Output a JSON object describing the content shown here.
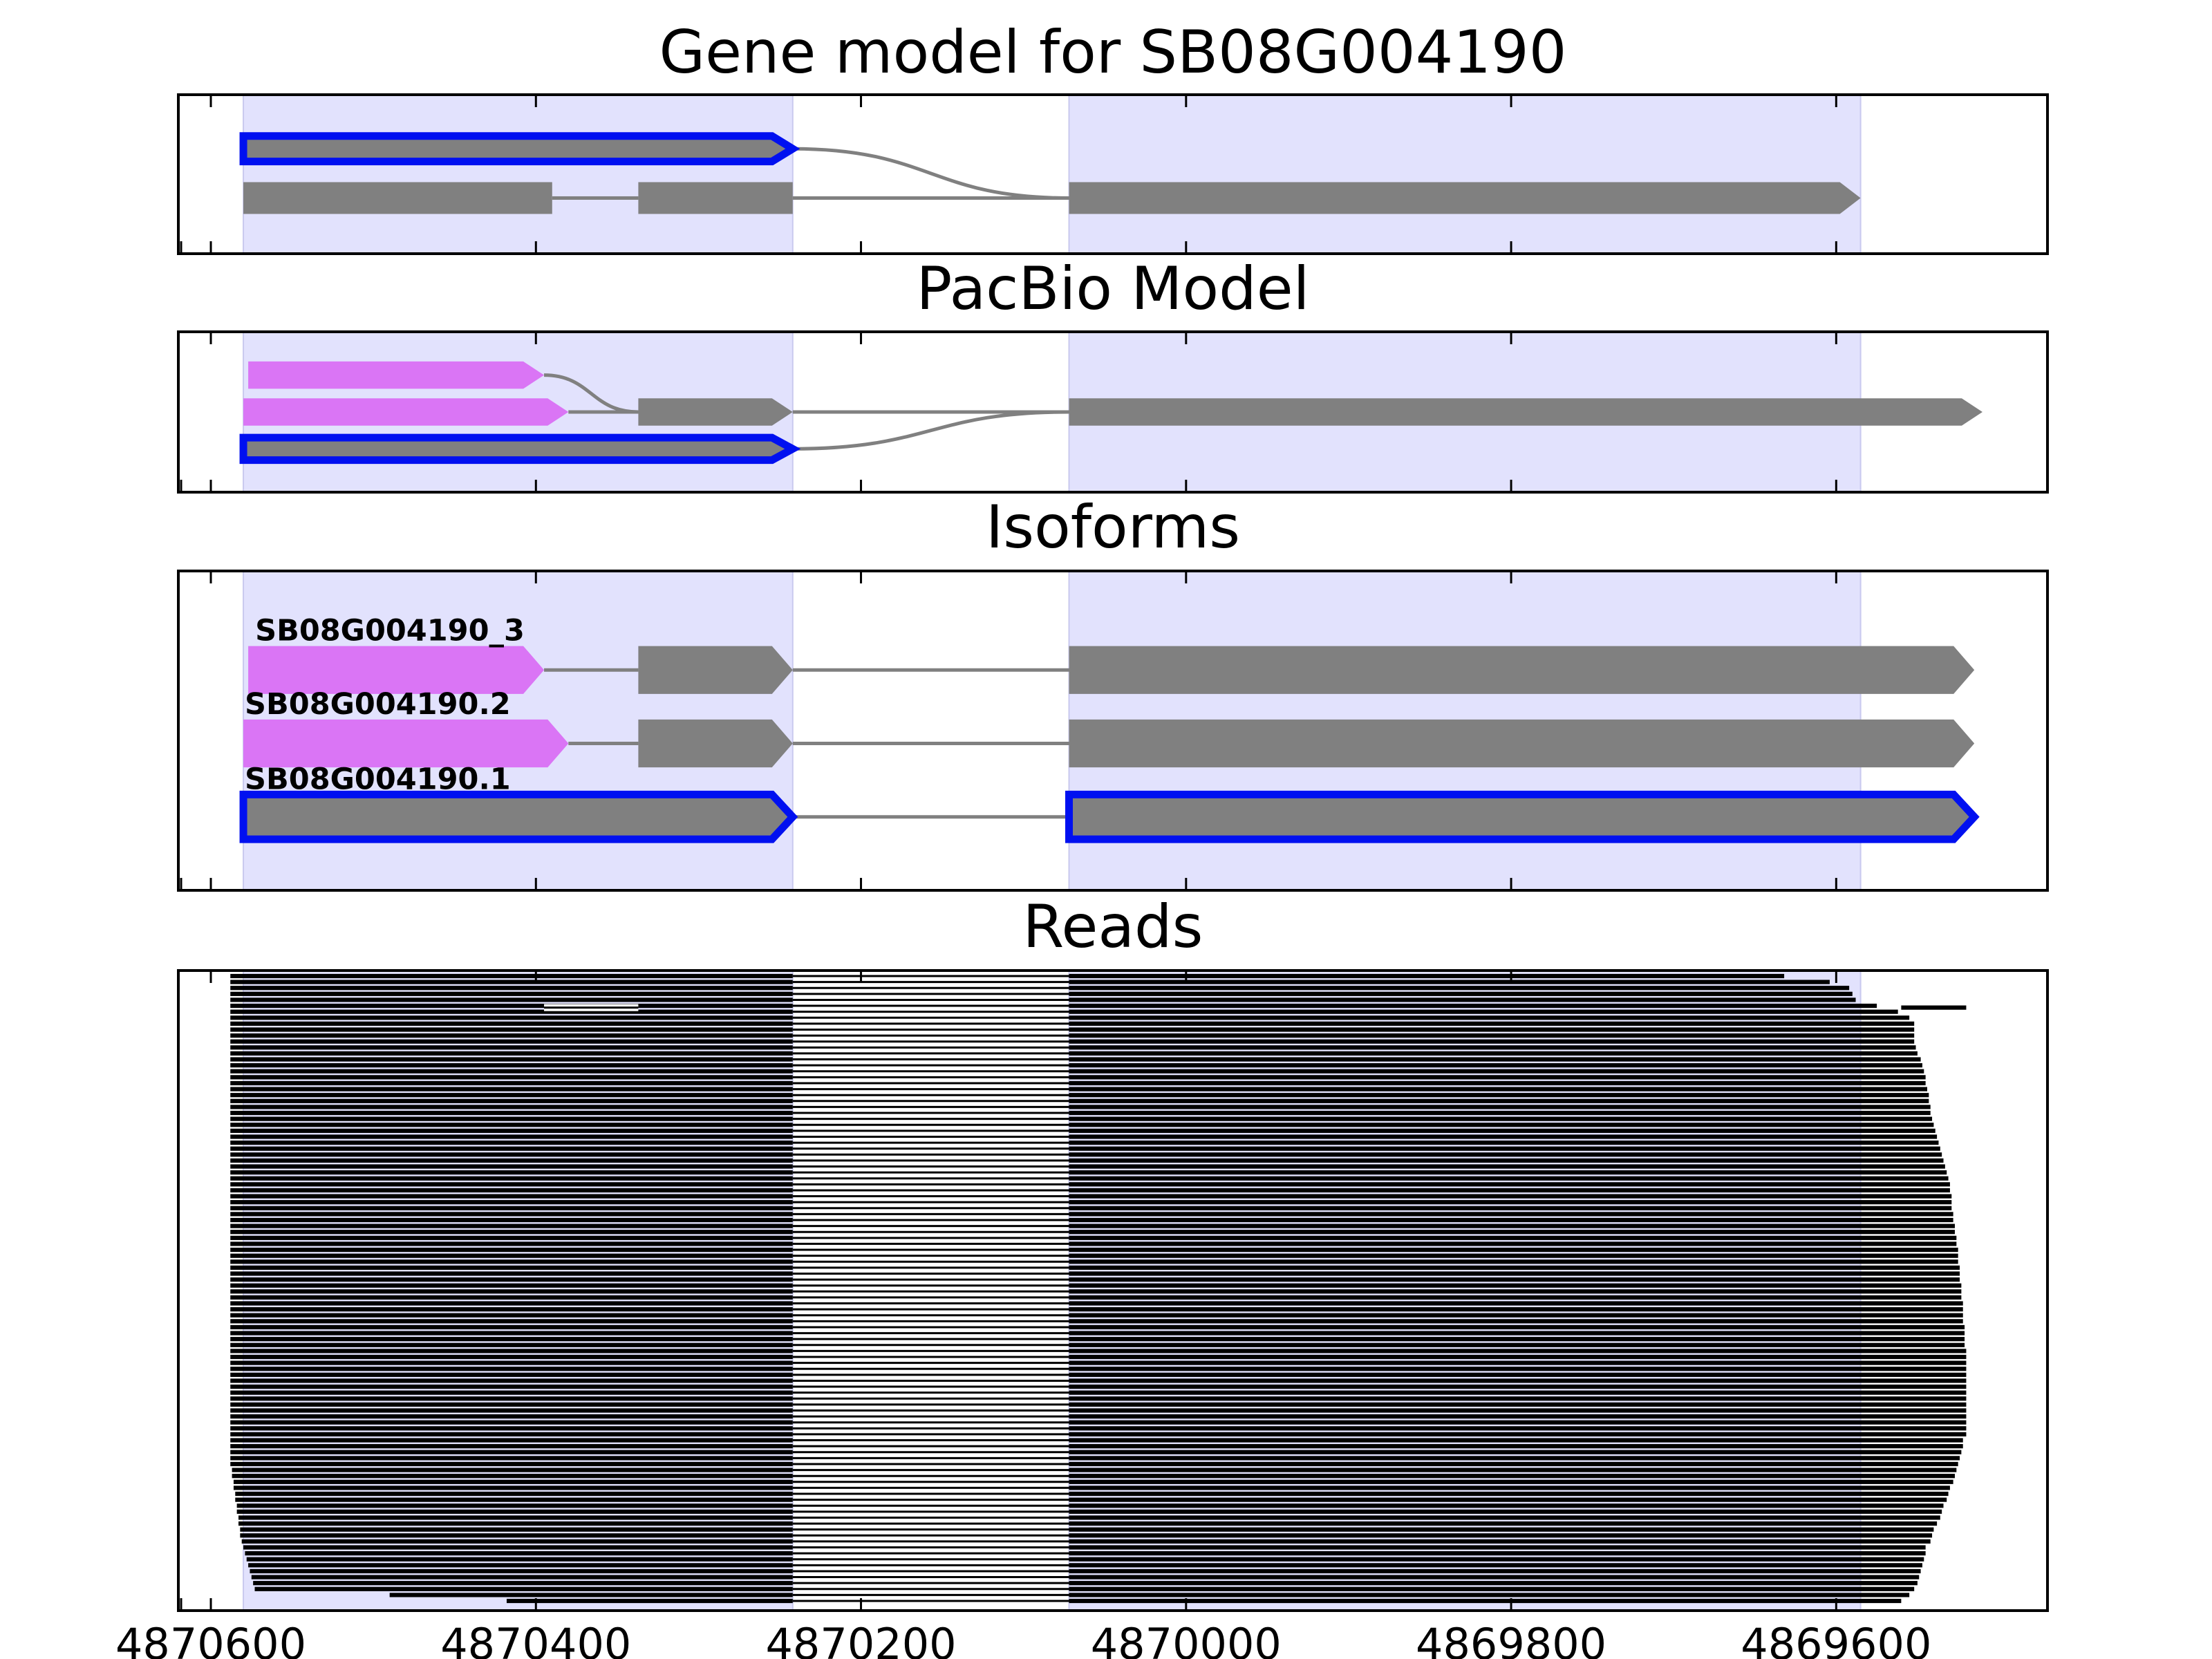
{
  "chart_data": {
    "type": "gene-track",
    "x_axis": {
      "xlim": [
        4870620,
        4869470
      ],
      "ticks": [
        4870600,
        4870400,
        4870200,
        4870000,
        4869800,
        4869600
      ],
      "tick_labels": [
        "4870600",
        "4870400",
        "4870200",
        "4870000",
        "4869800",
        "4869600"
      ]
    },
    "colors": {
      "exon": "#808080",
      "highlight_exon": "#da75f5",
      "selected_outline": "#0010f0",
      "intron": "#808080",
      "shaded_region": "#e2e2fd",
      "read": "#000000"
    },
    "shaded_regions": [
      [
        4870580,
        4870242
      ],
      [
        4870072,
        4869585
      ]
    ],
    "panels": [
      {
        "title": "Gene model for SB08G004190",
        "ymax": 1.0,
        "transcripts": [
          {
            "y": 0.66,
            "h": 0.16,
            "selected": true,
            "intron_style": "curve",
            "exons": [
              {
                "s": 4870580,
                "e": 4870242,
                "arrow": true
              }
            ]
          },
          {
            "y": 0.35,
            "h": 0.2,
            "selected": false,
            "intron_style": "line",
            "exons": [
              {
                "s": 4870580,
                "e": 4870390
              },
              {
                "s": 4870337,
                "e": 4870242
              },
              {
                "s": 4870072,
                "e": 4869585,
                "arrow": true
              }
            ]
          }
        ],
        "connectors": [
          {
            "from": 4870242,
            "to": 4870072,
            "y1": 0.66,
            "y2": 0.35
          }
        ]
      },
      {
        "title": "PacBio Model",
        "ymax": 1.0,
        "transcripts": [
          {
            "y": 0.73,
            "h": 0.17,
            "selected": false,
            "intron_style": "none",
            "exons": [
              {
                "s": 4870577,
                "e": 4870395,
                "arrow": true,
                "highlight": true
              }
            ]
          },
          {
            "y": 0.5,
            "h": 0.17,
            "selected": false,
            "intron_style": "line",
            "exons": [
              {
                "s": 4870580,
                "e": 4870380,
                "arrow": true,
                "highlight": true
              },
              {
                "s": 4870337,
                "e": 4870242,
                "arrow": true
              },
              {
                "s": 4870072,
                "e": 4869510,
                "arrow": true
              }
            ]
          },
          {
            "y": 0.27,
            "h": 0.14,
            "selected": true,
            "intron_style": "none",
            "exons": [
              {
                "s": 4870580,
                "e": 4870242,
                "arrow": true
              }
            ]
          }
        ],
        "connectors": [
          {
            "from": 4870395,
            "to": 4870337,
            "y1": 0.73,
            "y2": 0.5
          },
          {
            "from": 4870242,
            "to": 4870072,
            "y1": 0.27,
            "y2": 0.5
          }
        ]
      },
      {
        "title": "Isoforms",
        "ymax": 1.0,
        "transcripts": [
          {
            "name": "SB08G004190_3",
            "y": 0.69,
            "h": 0.15,
            "selected": false,
            "intron_style": "line",
            "exons": [
              {
                "s": 4870577,
                "e": 4870395,
                "arrow": true,
                "highlight": true
              },
              {
                "s": 4870337,
                "e": 4870242,
                "arrow": true
              },
              {
                "s": 4870072,
                "e": 4869515,
                "arrow": true
              }
            ]
          },
          {
            "name": "SB08G004190.2",
            "y": 0.46,
            "h": 0.15,
            "selected": false,
            "intron_style": "line",
            "exons": [
              {
                "s": 4870580,
                "e": 4870380,
                "arrow": true,
                "highlight": true
              },
              {
                "s": 4870337,
                "e": 4870242,
                "arrow": true
              },
              {
                "s": 4870072,
                "e": 4869515,
                "arrow": true
              }
            ]
          },
          {
            "name": "SB08G004190.1",
            "y": 0.23,
            "h": 0.14,
            "selected": true,
            "intron_style": "line",
            "exons": [
              {
                "s": 4870580,
                "e": 4870242,
                "arrow": true
              },
              {
                "s": 4870072,
                "e": 4869515,
                "arrow": true
              }
            ]
          }
        ]
      },
      {
        "title": "Reads",
        "reads": {
          "count": 106,
          "exon1_end": 4870242,
          "exon2_start": 4870072,
          "exon1_starts": [
            4870588,
            4870588,
            4870588,
            4870588,
            4870588,
            4870588,
            4870588,
            4870588,
            4870588,
            4870588,
            4870588,
            4870588,
            4870588,
            4870588,
            4870588,
            4870588,
            4870588,
            4870588,
            4870588,
            4870588,
            4870588,
            4870588,
            4870588,
            4870588,
            4870588,
            4870588,
            4870588,
            4870588,
            4870588,
            4870588,
            4870588,
            4870588,
            4870588,
            4870588,
            4870588,
            4870588,
            4870588,
            4870588,
            4870588,
            4870588,
            4870588,
            4870588,
            4870588,
            4870588,
            4870588,
            4870588,
            4870588,
            4870588,
            4870588,
            4870588,
            4870588,
            4870588,
            4870588,
            4870588,
            4870588,
            4870588,
            4870588,
            4870588,
            4870588,
            4870588,
            4870588,
            4870588,
            4870588,
            4870588,
            4870588,
            4870588,
            4870588,
            4870588,
            4870588,
            4870588,
            4870588,
            4870588,
            4870588,
            4870588,
            4870588,
            4870588,
            4870588,
            4870588,
            4870588,
            4870588,
            4870588,
            4870588,
            4870588,
            4870587,
            4870587,
            4870586,
            4870586,
            4870585,
            4870585,
            4870584,
            4870584,
            4870583,
            4870583,
            4870582,
            4870582,
            4870581,
            4870580,
            4870579,
            4870578,
            4870577,
            4870576,
            4870575,
            4870574,
            4870573,
            4870490,
            4870418
          ],
          "exon2_ends": [
            4869632,
            4869604,
            4869592,
            4869590,
            4869588,
            4869575,
            4869562,
            4869555,
            4869552,
            4869552,
            4869552,
            4869552,
            4869551,
            4869550,
            4869548,
            4869547,
            4869546,
            4869545,
            4869545,
            4869544,
            4869543,
            4869543,
            4869542,
            4869542,
            4869541,
            4869540,
            4869539,
            4869538,
            4869537,
            4869536,
            4869535,
            4869534,
            4869533,
            4869532,
            4869531,
            4869530,
            4869530,
            4869529,
            4869529,
            4869529,
            4869528,
            4869528,
            4869527,
            4869527,
            4869526,
            4869526,
            4869525,
            4869525,
            4869525,
            4869524,
            4869524,
            4869524,
            4869523,
            4869523,
            4869523,
            4869522,
            4869522,
            4869522,
            4869522,
            4869521,
            4869521,
            4869521,
            4869521,
            4869520,
            4869520,
            4869520,
            4869520,
            4869520,
            4869520,
            4869520,
            4869520,
            4869520,
            4869520,
            4869520,
            4869520,
            4869520,
            4869520,
            4869520,
            4869522,
            4869522,
            4869523,
            4869524,
            4869525,
            4869526,
            4869527,
            4869528,
            4869530,
            4869531,
            4869532,
            4869534,
            4869535,
            4869536,
            4869538,
            4869540,
            4869541,
            4869542,
            4869545,
            4869545,
            4869546,
            4869547,
            4869548,
            4869549,
            4869550,
            4869552,
            4869555,
            4869560
          ],
          "special": [
            {
              "index": 3,
              "s": 4870588,
              "e": 4869575,
              "extra_exon": [
                4870395,
                4870337
              ]
            }
          ],
          "tail_extend": [
            {
              "index": 3,
              "to": 4869570
            }
          ]
        }
      }
    ]
  }
}
